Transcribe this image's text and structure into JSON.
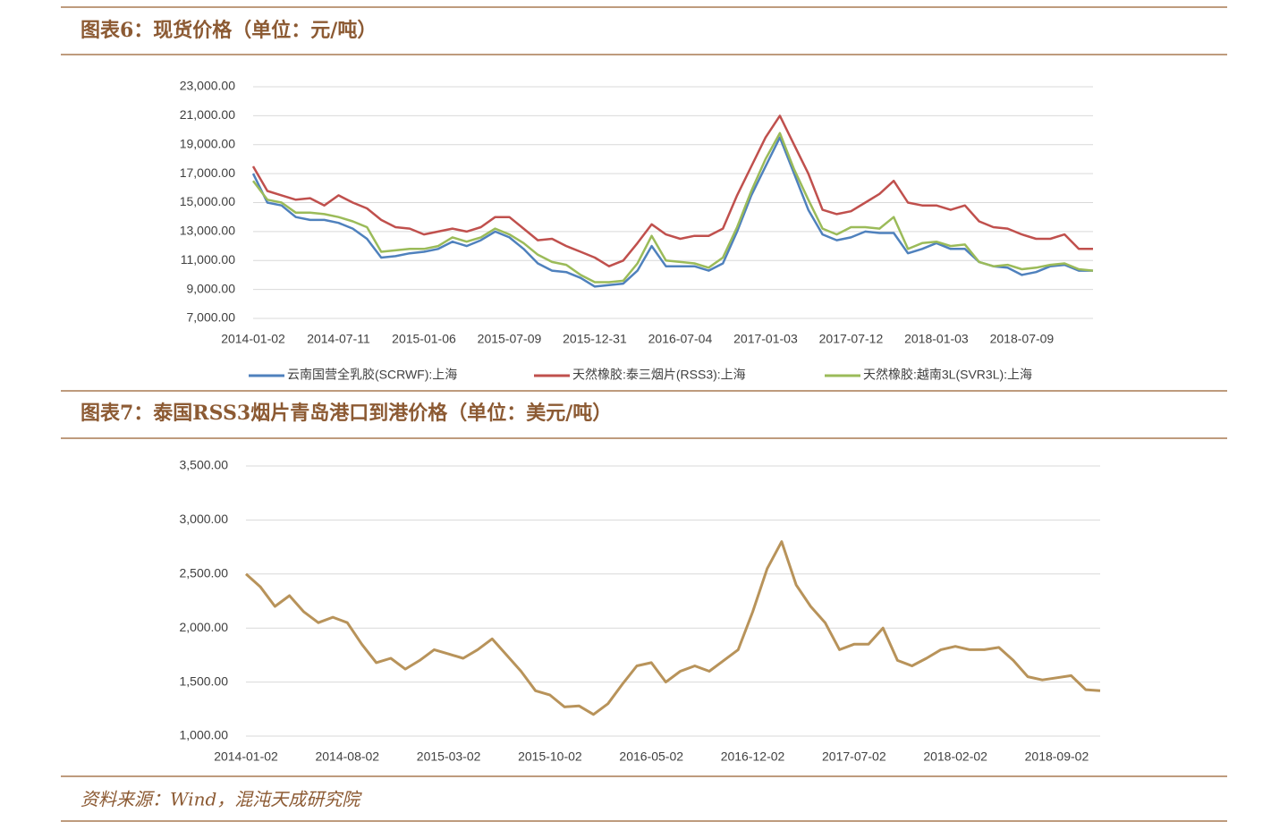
{
  "chart_data": [
    {
      "type": "line",
      "title": "图表6：现货价格（单位：元/吨）",
      "categories": [
        "2014-01-02",
        null,
        null,
        null,
        null,
        null,
        "2014-07-11",
        null,
        null,
        null,
        null,
        null,
        "2015-01-06",
        null,
        null,
        null,
        null,
        null,
        "2015-07-09",
        null,
        null,
        null,
        null,
        null,
        "2015-12-31",
        null,
        null,
        null,
        null,
        null,
        "2016-07-04",
        null,
        null,
        null,
        null,
        null,
        "2017-01-03",
        null,
        null,
        null,
        null,
        null,
        "2017-07-12",
        null,
        null,
        null,
        null,
        null,
        "2018-01-03",
        null,
        null,
        null,
        null,
        null,
        "2018-07-09",
        null,
        null,
        null,
        null,
        null
      ],
      "series": [
        {
          "name": "云南国营全乳胶(SCRWF):上海",
          "color": "#4f81bd",
          "values": [
            17000,
            15000,
            14800,
            14000,
            13800,
            13800,
            13600,
            13200,
            12500,
            11200,
            11300,
            11500,
            11600,
            11800,
            12300,
            12000,
            12400,
            13000,
            12600,
            11800,
            10800,
            10300,
            10200,
            9800,
            9200,
            9300,
            9400,
            10300,
            12000,
            10600,
            10600,
            10600,
            10300,
            10800,
            13000,
            15500,
            17500,
            19500,
            17000,
            14500,
            12800,
            12400,
            12600,
            13000,
            12900,
            12900,
            11500,
            11800,
            12200,
            11800,
            11800,
            10900,
            10600,
            10500,
            10000,
            10200,
            10600,
            10700,
            10300,
            10300
          ]
        },
        {
          "name": "天然橡胶:泰三烟片(RSS3):上海",
          "color": "#c0504d",
          "values": [
            17500,
            15800,
            15500,
            15200,
            15300,
            14800,
            15500,
            15000,
            14600,
            13800,
            13300,
            13200,
            12800,
            13000,
            13200,
            13000,
            13300,
            14000,
            14000,
            13200,
            12400,
            12500,
            12000,
            11600,
            11200,
            10600,
            11000,
            12200,
            13500,
            12800,
            12500,
            12700,
            12700,
            13200,
            15500,
            17500,
            19500,
            21000,
            19000,
            17000,
            14500,
            14200,
            14400,
            15000,
            15600,
            16500,
            15000,
            14800,
            14800,
            14500,
            14800,
            13700,
            13300,
            13200,
            12800,
            12500,
            12500,
            12800,
            11800,
            11800
          ]
        },
        {
          "name": "天然橡胶:越南3L(SVR3L):上海",
          "color": "#9bbb59",
          "values": [
            16500,
            15200,
            15000,
            14300,
            14300,
            14200,
            14000,
            13700,
            13300,
            11600,
            11700,
            11800,
            11800,
            12000,
            12600,
            12300,
            12600,
            13200,
            12800,
            12200,
            11400,
            10900,
            10700,
            10000,
            9500,
            9500,
            9600,
            10800,
            12700,
            11000,
            10900,
            10800,
            10500,
            11200,
            13300,
            15800,
            18000,
            19800,
            17300,
            15200,
            13200,
            12800,
            13300,
            13300,
            13200,
            14000,
            11800,
            12200,
            12300,
            12000,
            12100,
            10900,
            10600,
            10700,
            10400,
            10500,
            10700,
            10800,
            10400,
            10300
          ]
        }
      ],
      "ylim": [
        7000,
        23000
      ],
      "yticks": [
        {
          "value": 7000,
          "label": "7,000.00"
        },
        {
          "value": 9000,
          "label": "9,000.00"
        },
        {
          "value": 11000,
          "label": "11,000.00"
        },
        {
          "value": 13000,
          "label": "13,000.00"
        },
        {
          "value": 15000,
          "label": "15,000.00"
        },
        {
          "value": 17000,
          "label": "17,000.00"
        },
        {
          "value": 19000,
          "label": "19,000.00"
        },
        {
          "value": 21000,
          "label": "21,000.00"
        },
        {
          "value": 23000,
          "label": "23,000.00"
        }
      ],
      "grid": true,
      "legend": "bottom"
    },
    {
      "type": "line",
      "title": "图表7：泰国RSS3烟片青岛港口到港价格（单位：美元/吨）",
      "categories": [
        "2014-01-02",
        null,
        null,
        null,
        null,
        null,
        null,
        "2014-08-02",
        null,
        null,
        null,
        null,
        null,
        null,
        "2015-03-02",
        null,
        null,
        null,
        null,
        null,
        null,
        "2015-10-02",
        null,
        null,
        null,
        null,
        null,
        null,
        "2016-05-02",
        null,
        null,
        null,
        null,
        null,
        null,
        "2016-12-02",
        null,
        null,
        null,
        null,
        null,
        null,
        "2017-07-02",
        null,
        null,
        null,
        null,
        null,
        null,
        "2018-02-02",
        null,
        null,
        null,
        null,
        null,
        null,
        "2018-09-02",
        null,
        null,
        null
      ],
      "values": [
        2500,
        2380,
        2200,
        2300,
        2150,
        2050,
        2100,
        2050,
        1850,
        1680,
        1720,
        1620,
        1700,
        1800,
        1760,
        1720,
        1800,
        1900,
        1750,
        1600,
        1420,
        1380,
        1270,
        1280,
        1200,
        1300,
        1480,
        1650,
        1680,
        1500,
        1600,
        1650,
        1600,
        1700,
        1800,
        2150,
        2550,
        2800,
        2400,
        2200,
        2050,
        1800,
        1850,
        1850,
        2000,
        1700,
        1650,
        1720,
        1800,
        1830,
        1800,
        1800,
        1820,
        1700,
        1550,
        1520,
        1540,
        1560,
        1430,
        1420
      ],
      "color": "#b8935a",
      "ylim": [
        1000,
        3500
      ],
      "yticks": [
        {
          "value": 1000,
          "label": "1,000.00"
        },
        {
          "value": 1500,
          "label": "1,500.00"
        },
        {
          "value": 2000,
          "label": "2,000.00"
        },
        {
          "value": 2500,
          "label": "2,500.00"
        },
        {
          "value": 3000,
          "label": "3,000.00"
        },
        {
          "value": 3500,
          "label": "3,500.00"
        }
      ],
      "grid": true
    }
  ],
  "source": "资料来源：Wind，混沌天成研究院"
}
